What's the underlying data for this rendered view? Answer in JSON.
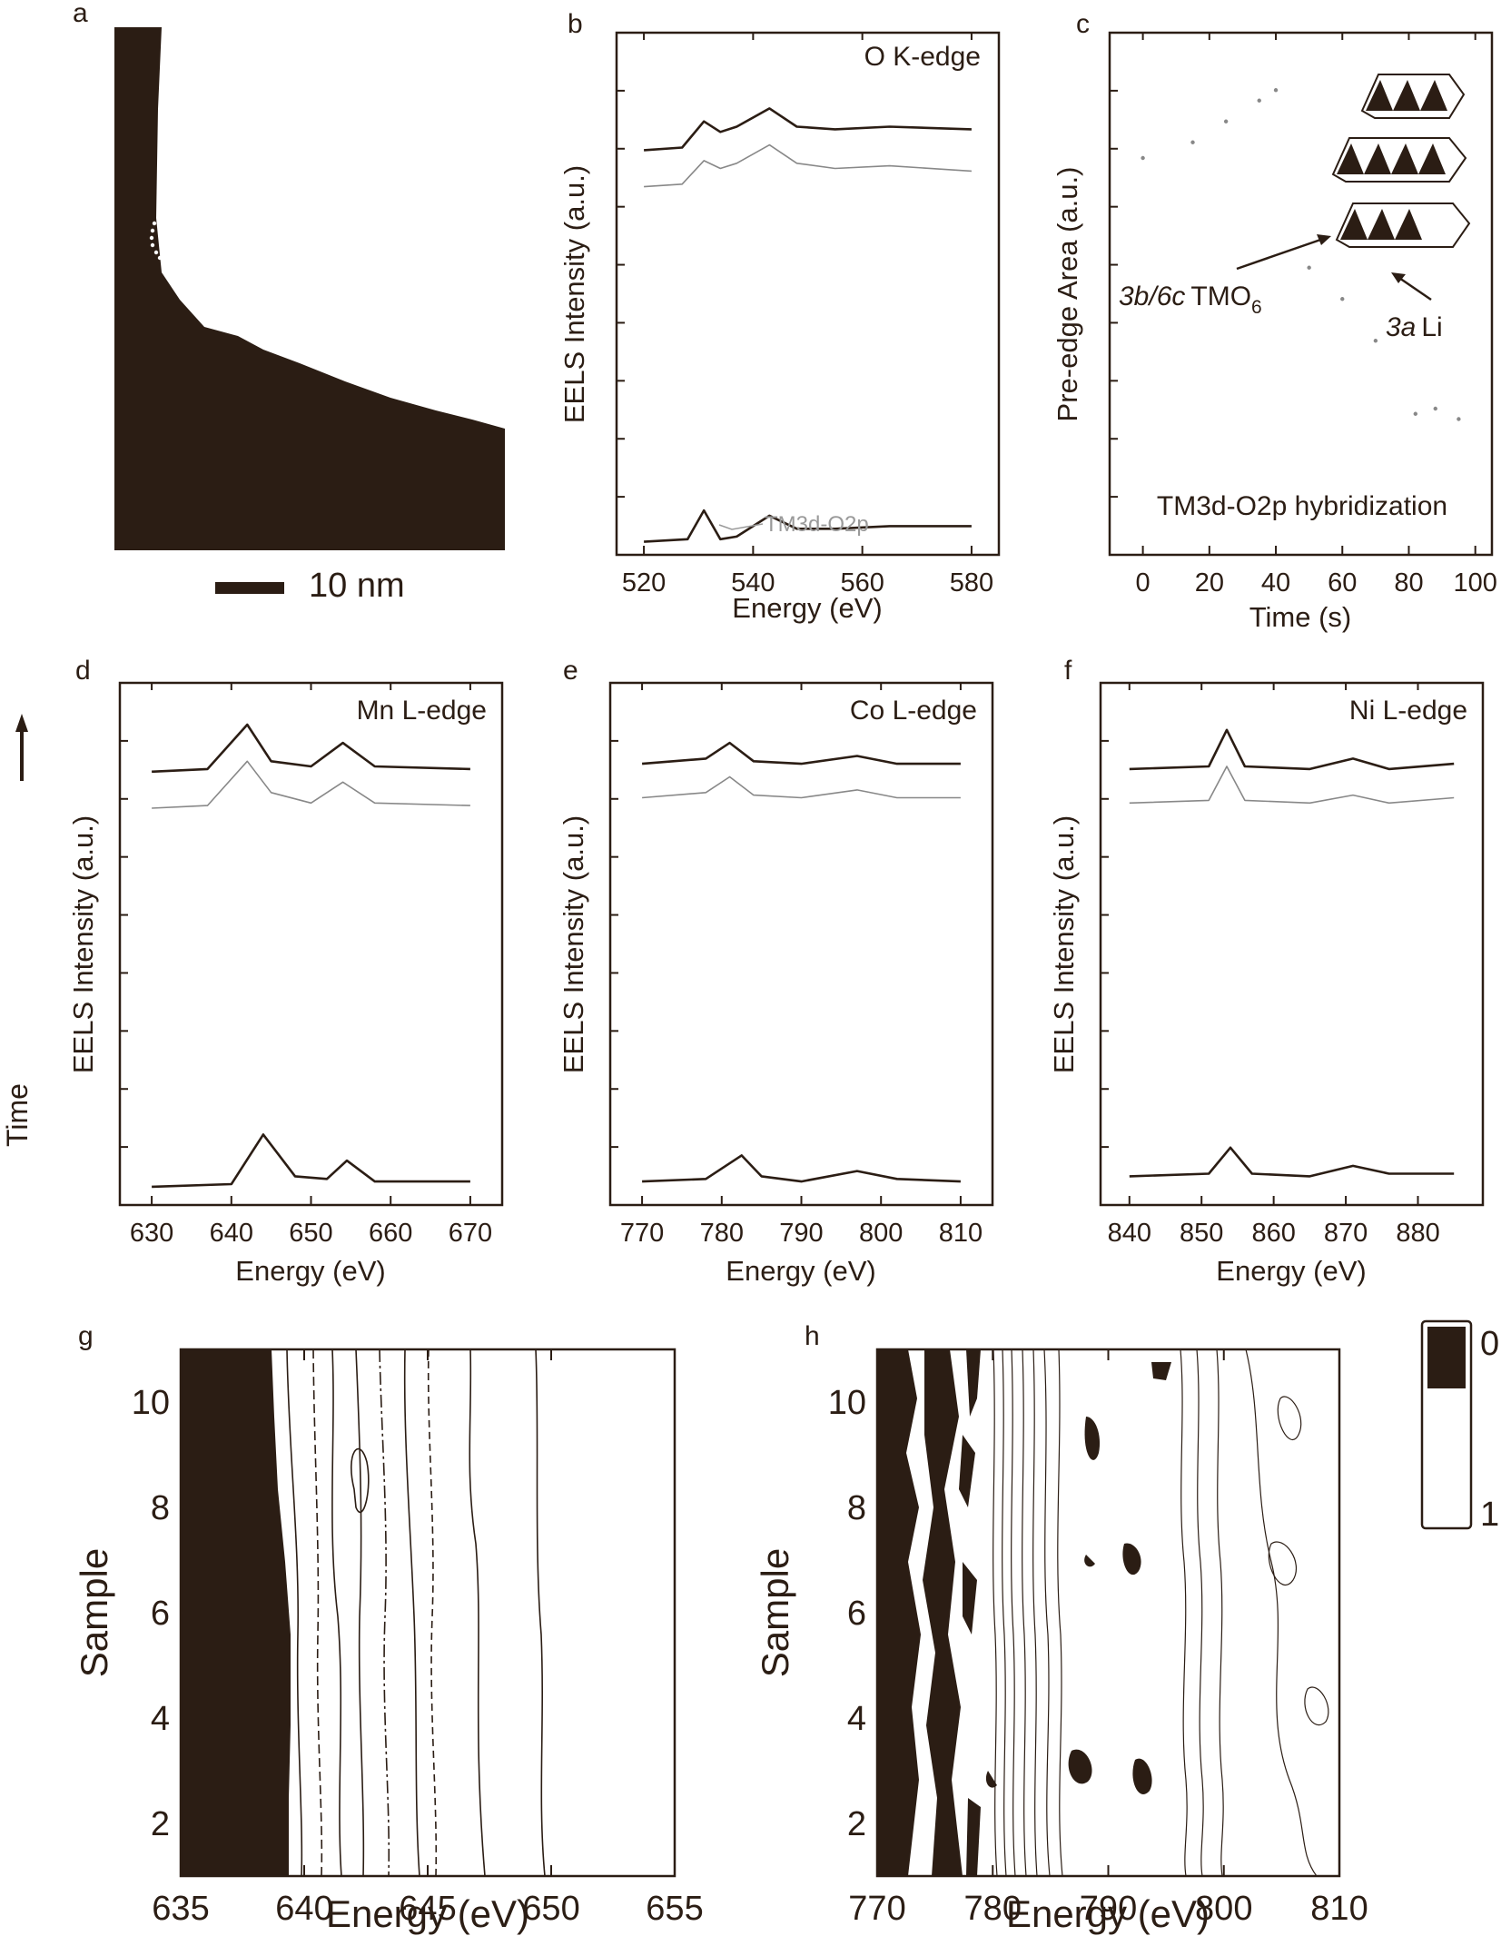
{
  "panels": {
    "a": {
      "label": "a",
      "scale_bar_text": "10 nm"
    },
    "b": {
      "label": "b",
      "ylabel": "EELS Intensity (a.u.)",
      "xlabel": "Energy (eV)",
      "annotation": "O K-edge",
      "pre_peak_label": "TM3d-O2p"
    },
    "c": {
      "label": "c",
      "ylabel": "Pre-edge Area (a.u.)",
      "xlabel": "Time (s)",
      "annotation": "TM3d-O2p hybridization",
      "label_tm_italic": "3b/6c",
      "label_tm_main": "TMO",
      "label_tm_sub": "6",
      "label_li_italic": "3a",
      "label_li_main": "Li"
    },
    "d": {
      "label": "d",
      "ylabel": "EELS Intensity (a.u.)",
      "xlabel": "Energy (eV)",
      "annotation": "Mn L-edge"
    },
    "e": {
      "label": "e",
      "ylabel": "EELS Intensity (a.u.)",
      "xlabel": "Energy (eV)",
      "annotation": "Co L-edge"
    },
    "f": {
      "label": "f",
      "ylabel": "EELS Intensity (a.u.)",
      "xlabel": "Energy (eV)",
      "annotation": "Ni L-edge"
    },
    "g": {
      "label": "g",
      "ylabel": "Sample",
      "xlabel": "Energy (eV)"
    },
    "h": {
      "label": "h",
      "ylabel": "Sample",
      "xlabel": "Energy (eV)"
    }
  },
  "time_axis_label": "Time",
  "colorbar": {
    "top_label": "0",
    "bottom_label": "1"
  },
  "colors": {
    "ink": "#2b1d14",
    "faint": "#888888"
  },
  "chart_data": [
    {
      "id": "b",
      "type": "line",
      "xlim": [
        515,
        585
      ],
      "xticks": [
        520,
        540,
        560,
        580
      ],
      "ylim": [
        0,
        10
      ],
      "series": [
        {
          "points": [
            [
              520,
              7.75
            ],
            [
              527,
              7.8
            ],
            [
              531,
              8.3
            ],
            [
              534,
              8.1
            ],
            [
              537,
              8.2
            ],
            [
              543,
              8.55
            ],
            [
              548,
              8.2
            ],
            [
              555,
              8.15
            ],
            [
              565,
              8.2
            ],
            [
              580,
              8.15
            ]
          ]
        },
        {
          "points": [
            [
              520,
              7.05
            ],
            [
              527,
              7.1
            ],
            [
              531,
              7.55
            ],
            [
              534,
              7.4
            ],
            [
              537,
              7.5
            ],
            [
              543,
              7.85
            ],
            [
              548,
              7.5
            ],
            [
              555,
              7.4
            ],
            [
              565,
              7.45
            ],
            [
              580,
              7.35
            ]
          ]
        },
        {
          "points": [
            [
              520,
              0.25
            ],
            [
              528,
              0.3
            ],
            [
              531,
              0.85
            ],
            [
              534,
              0.3
            ],
            [
              537,
              0.35
            ],
            [
              543,
              0.75
            ],
            [
              548,
              0.5
            ],
            [
              555,
              0.5
            ],
            [
              565,
              0.55
            ],
            [
              580,
              0.55
            ]
          ]
        }
      ]
    },
    {
      "id": "c",
      "type": "scatter",
      "xlim": [
        -10,
        105
      ],
      "xticks": [
        0,
        20,
        40,
        60,
        80,
        100
      ],
      "ylim": [
        0,
        10
      ],
      "series": [
        {
          "points": [
            [
              0,
              7.6
            ],
            [
              15,
              7.9
            ],
            [
              25,
              8.3
            ],
            [
              35,
              8.7
            ],
            [
              40,
              8.9
            ],
            [
              50,
              5.5
            ],
            [
              60,
              4.9
            ],
            [
              70,
              4.1
            ],
            [
              82,
              2.7
            ],
            [
              88,
              2.8
            ],
            [
              95,
              2.6
            ]
          ]
        }
      ]
    },
    {
      "id": "d",
      "type": "line",
      "xlim": [
        626,
        674
      ],
      "xticks": [
        630,
        640,
        650,
        660,
        670
      ],
      "ylim": [
        0,
        10
      ],
      "series": [
        {
          "points": [
            [
              630,
              8.3
            ],
            [
              637,
              8.35
            ],
            [
              642,
              9.2
            ],
            [
              645,
              8.5
            ],
            [
              650,
              8.4
            ],
            [
              654,
              8.85
            ],
            [
              658,
              8.4
            ],
            [
              670,
              8.35
            ]
          ]
        },
        {
          "points": [
            [
              630,
              7.6
            ],
            [
              637,
              7.65
            ],
            [
              642,
              8.5
            ],
            [
              645,
              7.9
            ],
            [
              650,
              7.7
            ],
            [
              654,
              8.1
            ],
            [
              658,
              7.7
            ],
            [
              670,
              7.65
            ]
          ]
        },
        {
          "points": [
            [
              630,
              0.35
            ],
            [
              640,
              0.4
            ],
            [
              644,
              1.35
            ],
            [
              648,
              0.55
            ],
            [
              652,
              0.5
            ],
            [
              654.5,
              0.85
            ],
            [
              658,
              0.45
            ],
            [
              670,
              0.45
            ]
          ]
        }
      ]
    },
    {
      "id": "e",
      "type": "line",
      "xlim": [
        766,
        814
      ],
      "xticks": [
        770,
        780,
        790,
        800,
        810
      ],
      "ylim": [
        0,
        10
      ],
      "series": [
        {
          "points": [
            [
              770,
              8.45
            ],
            [
              778,
              8.55
            ],
            [
              781,
              8.85
            ],
            [
              784,
              8.5
            ],
            [
              790,
              8.45
            ],
            [
              797,
              8.6
            ],
            [
              802,
              8.45
            ],
            [
              810,
              8.45
            ]
          ]
        },
        {
          "points": [
            [
              770,
              7.8
            ],
            [
              778,
              7.9
            ],
            [
              781,
              8.2
            ],
            [
              784,
              7.85
            ],
            [
              790,
              7.8
            ],
            [
              797,
              7.95
            ],
            [
              802,
              7.8
            ],
            [
              810,
              7.8
            ]
          ]
        },
        {
          "points": [
            [
              770,
              0.45
            ],
            [
              778,
              0.5
            ],
            [
              782.5,
              0.95
            ],
            [
              785,
              0.55
            ],
            [
              790,
              0.45
            ],
            [
              797,
              0.65
            ],
            [
              802,
              0.5
            ],
            [
              810,
              0.45
            ]
          ]
        }
      ]
    },
    {
      "id": "f",
      "type": "line",
      "xlim": [
        836,
        889
      ],
      "xticks": [
        840,
        850,
        860,
        870,
        880
      ],
      "ylim": [
        0,
        10
      ],
      "series": [
        {
          "points": [
            [
              840,
              8.35
            ],
            [
              851,
              8.4
            ],
            [
              853.5,
              9.1
            ],
            [
              856,
              8.4
            ],
            [
              865,
              8.35
            ],
            [
              871,
              8.55
            ],
            [
              876,
              8.35
            ],
            [
              885,
              8.45
            ]
          ]
        },
        {
          "points": [
            [
              840,
              7.7
            ],
            [
              851,
              7.75
            ],
            [
              853.5,
              8.4
            ],
            [
              856,
              7.75
            ],
            [
              865,
              7.7
            ],
            [
              871,
              7.85
            ],
            [
              876,
              7.7
            ],
            [
              885,
              7.8
            ]
          ]
        },
        {
          "points": [
            [
              840,
              0.55
            ],
            [
              851,
              0.6
            ],
            [
              854,
              1.1
            ],
            [
              857,
              0.6
            ],
            [
              865,
              0.55
            ],
            [
              871,
              0.75
            ],
            [
              876,
              0.6
            ],
            [
              885,
              0.6
            ]
          ]
        }
      ]
    },
    {
      "id": "g",
      "type": "heatmap",
      "xlim": [
        635,
        655
      ],
      "xticks": [
        635,
        640,
        645,
        650,
        655
      ],
      "ylim": [
        1,
        11
      ],
      "yticks": [
        2,
        4,
        6,
        8,
        10
      ]
    },
    {
      "id": "h",
      "type": "heatmap",
      "xlim": [
        770,
        810
      ],
      "xticks": [
        770,
        780,
        790,
        800,
        810
      ],
      "ylim": [
        1,
        11
      ],
      "yticks": [
        2,
        4,
        6,
        8,
        10
      ]
    }
  ]
}
